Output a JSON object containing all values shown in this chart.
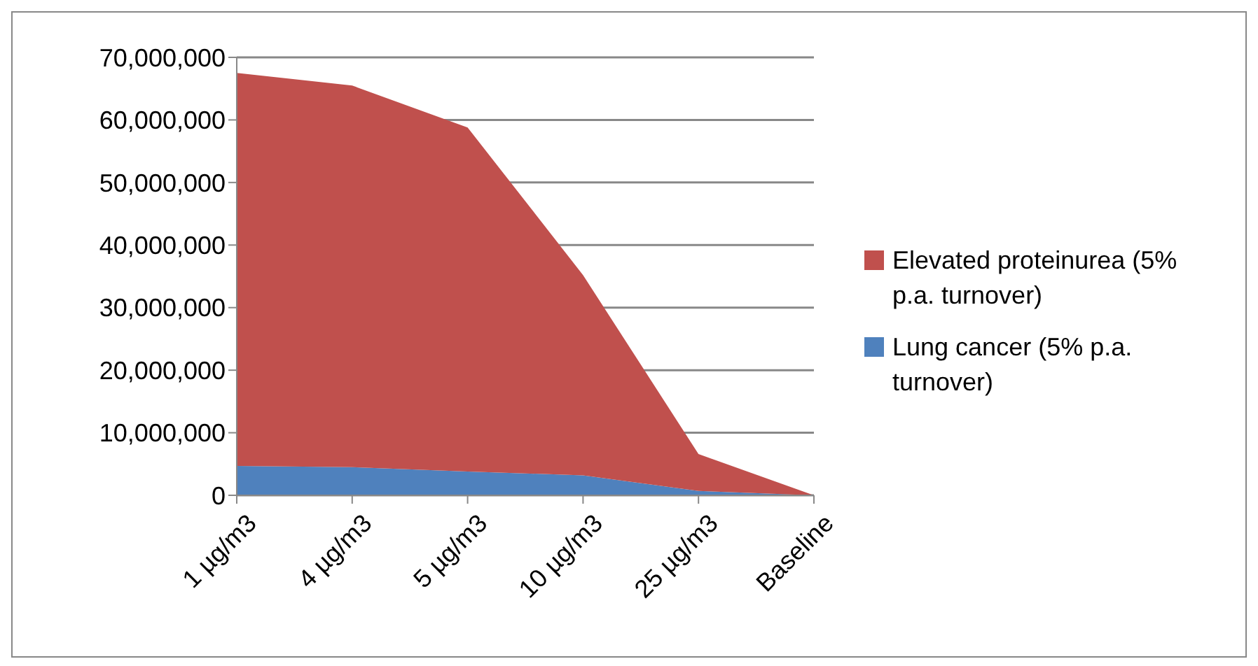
{
  "chart_data": {
    "type": "area",
    "stacked": true,
    "categories": [
      "1 µg/m3",
      "4 µg/m3",
      "5 µg/m3",
      "10 µg/m3",
      "25 µg/m3",
      "Baseline"
    ],
    "series": [
      {
        "name": "Lung cancer (5% p.a. turnover)",
        "color": "#4f81bd",
        "values": [
          4700000,
          4500000,
          3800000,
          3200000,
          700000,
          0
        ]
      },
      {
        "name": "Elevated proteinurea (5% p.a. turnover)",
        "color": "#c0504d",
        "values": [
          62800000,
          61000000,
          55000000,
          32000000,
          5900000,
          0
        ]
      }
    ],
    "ylim": [
      0,
      70000000
    ],
    "yticks": [
      0,
      {
        "value": 10000000,
        "label": "10,000,000"
      },
      {
        "value": 20000000,
        "label": "20,000,000"
      },
      {
        "value": 30000000,
        "label": "30,000,000"
      },
      {
        "value": 40000000,
        "label": "40,000,000"
      },
      {
        "value": 50000000,
        "label": "50,000,000"
      },
      {
        "value": 60000000,
        "label": "60,000,000"
      },
      {
        "value": 70000000,
        "label": "70,000,000"
      }
    ],
    "grid": "y",
    "legend": "right"
  }
}
